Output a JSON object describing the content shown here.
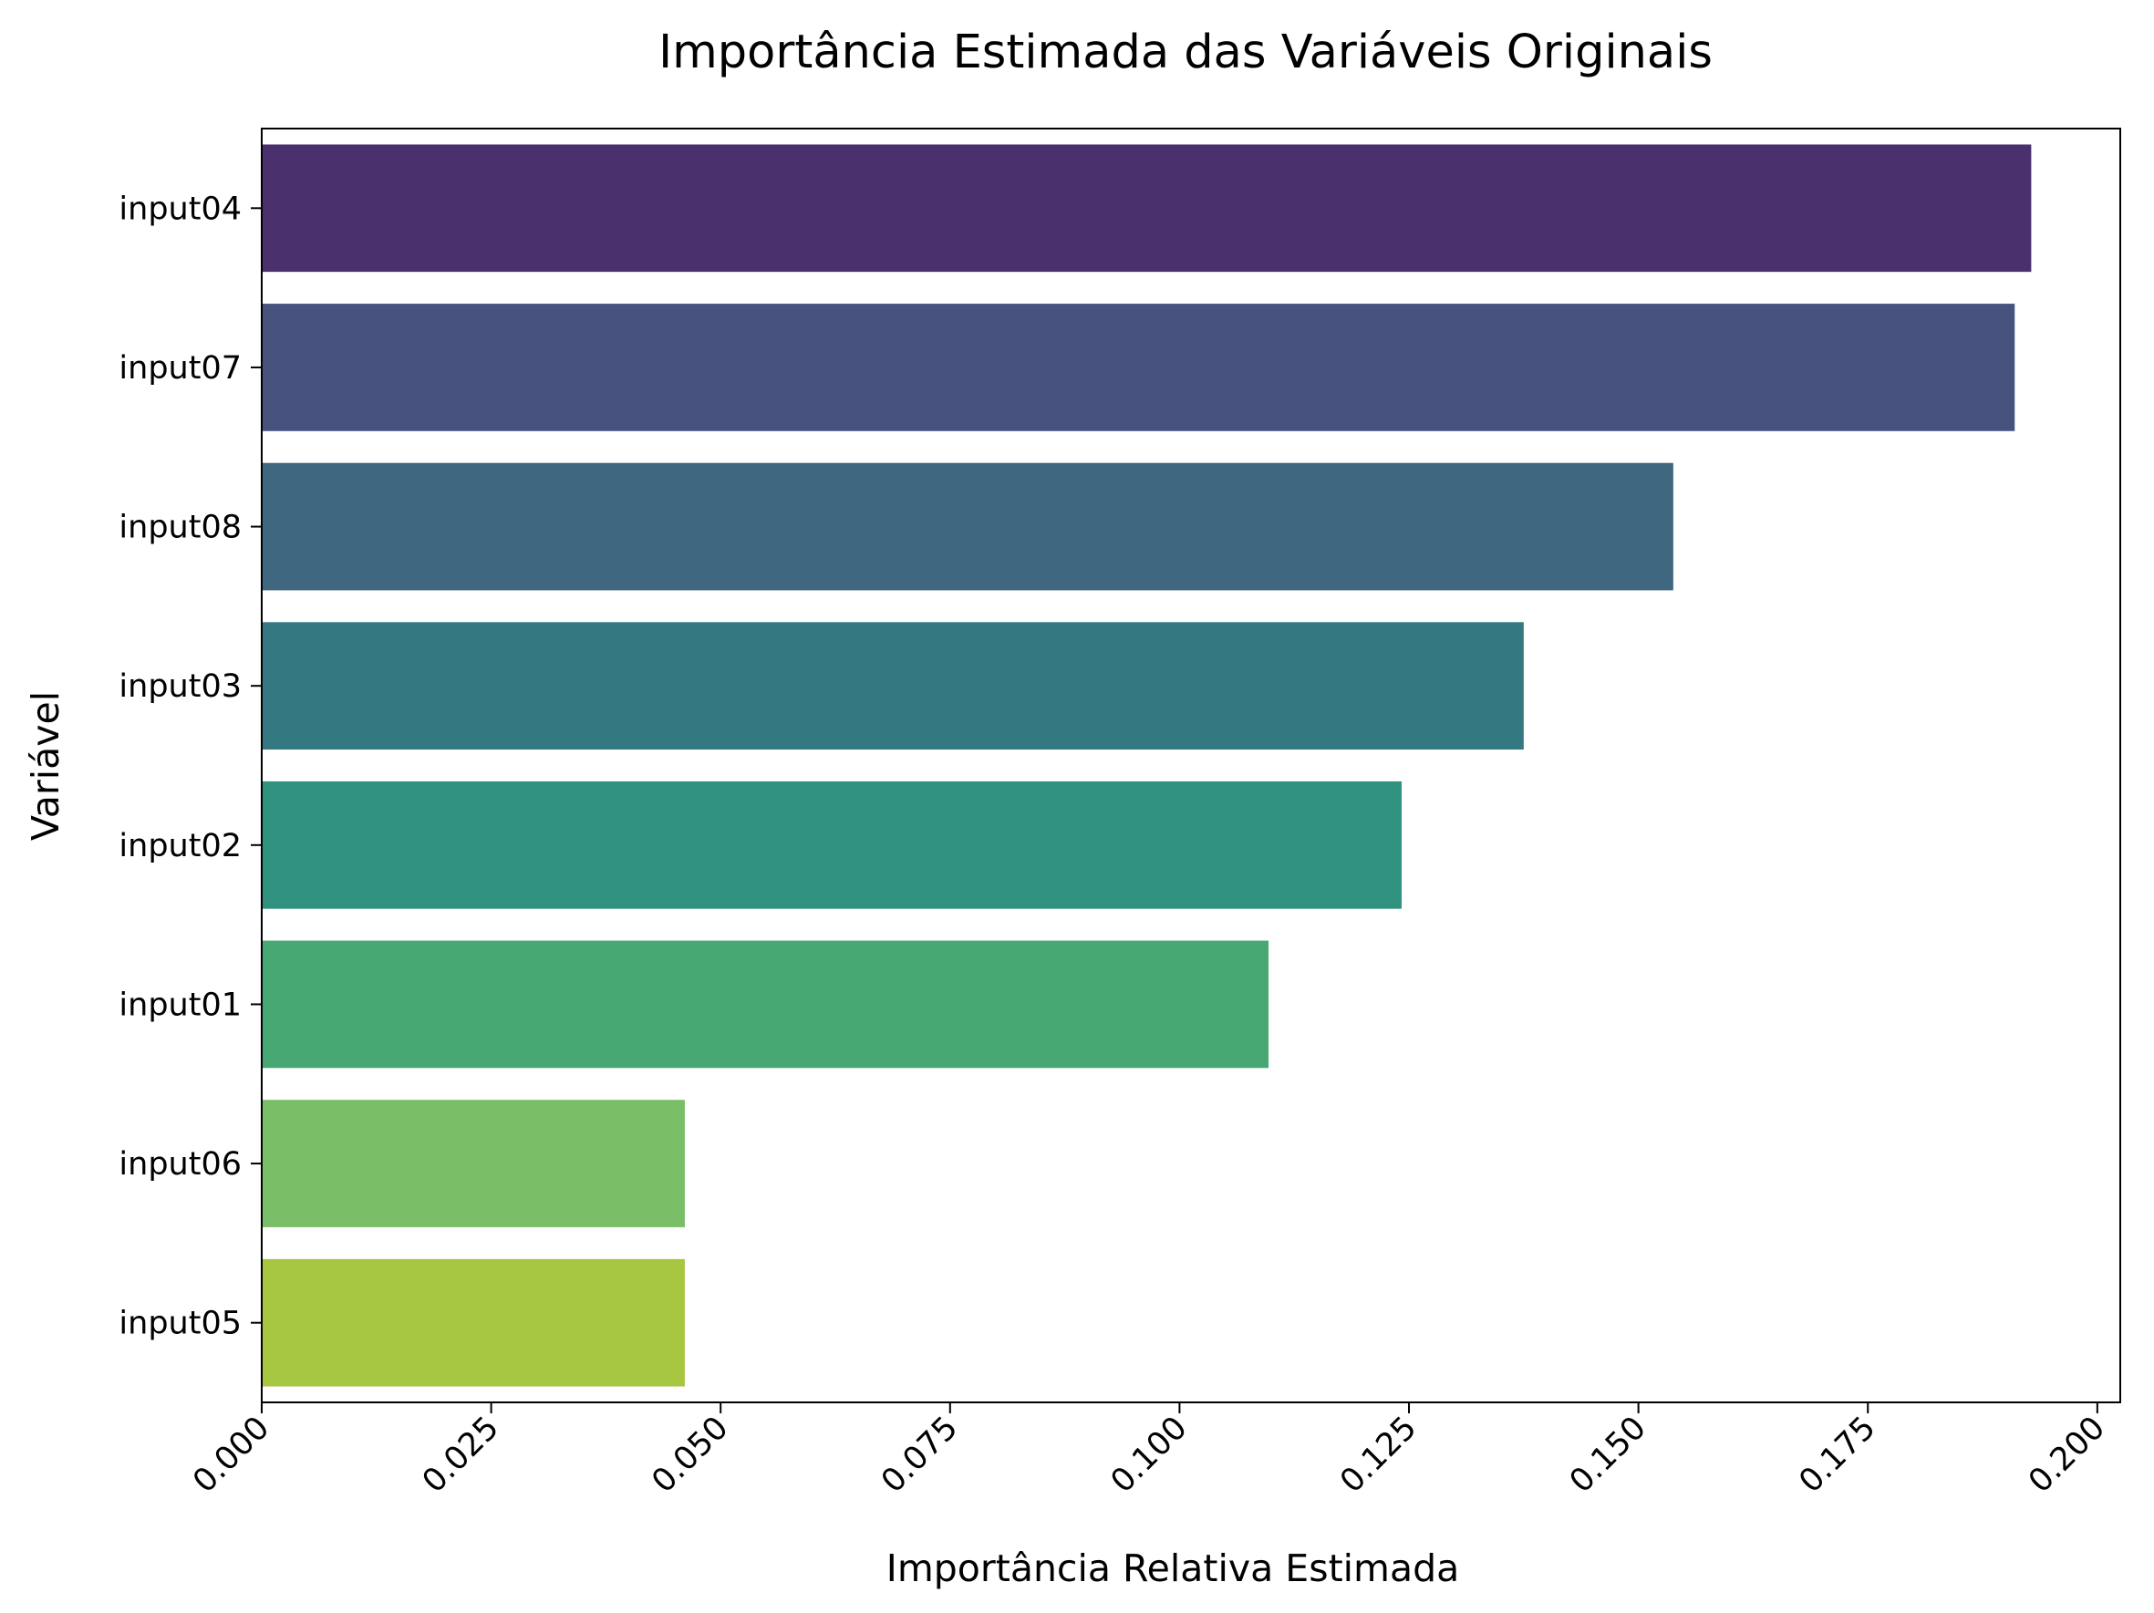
{
  "chart_data": {
    "type": "bar",
    "orientation": "horizontal",
    "title": "Importância Estimada das Variáveis Originais",
    "xlabel": "Importância Relativa Estimada",
    "ylabel": "Variável",
    "xlim": [
      0.0,
      0.2025
    ],
    "xticks": [
      0.0,
      0.025,
      0.05,
      0.075,
      0.1,
      0.125,
      0.15,
      0.175,
      0.2
    ],
    "xtick_labels": [
      "0.000",
      "0.025",
      "0.050",
      "0.075",
      "0.100",
      "0.125",
      "0.150",
      "0.175",
      "0.200"
    ],
    "categories": [
      "input04",
      "input07",
      "input08",
      "input03",
      "input02",
      "input01",
      "input06",
      "input05"
    ],
    "values": [
      0.1928,
      0.191,
      0.1538,
      0.1375,
      0.1242,
      0.1097,
      0.0461,
      0.0461
    ],
    "colors": [
      "#4b306e",
      "#48527f",
      "#3f677f",
      "#347881",
      "#2f917e",
      "#47a874",
      "#7abe67",
      "#a7c642"
    ],
    "grid": false,
    "legend": "none"
  }
}
